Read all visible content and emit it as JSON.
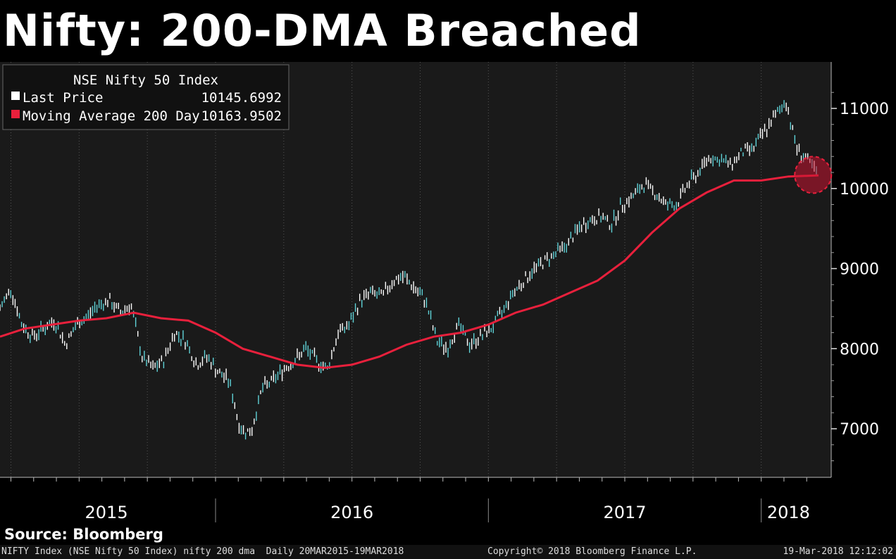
{
  "title": "Nifty: 200-DMA Breached",
  "source": "Source: Bloomberg",
  "footer": {
    "left": "NIFTY Index (NSE Nifty 50 Index) nifty 200 dma  Daily 20MAR2015-19MAR2018",
    "center": "Copyright© 2018 Bloomberg Finance L.P.",
    "right": "19-Mar-2018 12:12:02"
  },
  "colors": {
    "background": "#000000",
    "plot_background": "#1a1a1a",
    "price_bar": "#ffffff",
    "price_accent": "#5fd3d8",
    "moving_average": "#e8203c"
  },
  "chart_data": {
    "type": "line",
    "title": "NSE Nifty 50 Index",
    "x_range": [
      "2015-03-20",
      "2018-03-19"
    ],
    "ylim": [
      6500,
      11500
    ],
    "y_ticks": [
      7000,
      8000,
      9000,
      10000,
      11000
    ],
    "year_labels": [
      "2015",
      "2016",
      "2017",
      "2018"
    ],
    "legend": [
      {
        "label": "Last Price",
        "value": "10145.6992",
        "color": "#ffffff"
      },
      {
        "label": "Moving Average 200 Day",
        "value": "10163.9502",
        "color": "#e8203c"
      }
    ],
    "legend_position": "top-left",
    "annotation": "red dashed circle marking the 200-DMA breach near the last price",
    "series": [
      {
        "name": "Last Price",
        "x": [
          2015.21,
          2015.25,
          2015.29,
          2015.33,
          2015.37,
          2015.41,
          2015.45,
          2015.49,
          2015.53,
          2015.57,
          2015.61,
          2015.65,
          2015.69,
          2015.73,
          2015.77,
          2015.81,
          2015.85,
          2015.89,
          2015.93,
          2015.97,
          2016.01,
          2016.05,
          2016.09,
          2016.13,
          2016.17,
          2016.21,
          2016.25,
          2016.29,
          2016.33,
          2016.37,
          2016.41,
          2016.45,
          2016.49,
          2016.53,
          2016.57,
          2016.61,
          2016.65,
          2016.69,
          2016.73,
          2016.77,
          2016.81,
          2016.85,
          2016.89,
          2016.93,
          2016.97,
          2017.01,
          2017.05,
          2017.09,
          2017.13,
          2017.17,
          2017.21,
          2017.25,
          2017.29,
          2017.33,
          2017.37,
          2017.41,
          2017.45,
          2017.49,
          2017.53,
          2017.57,
          2017.61,
          2017.65,
          2017.69,
          2017.73,
          2017.77,
          2017.81,
          2017.85,
          2017.89,
          2017.93,
          2017.97,
          2018.01,
          2018.05,
          2018.09,
          2018.13,
          2018.17,
          2018.21
        ],
        "values": [
          8500,
          8750,
          8300,
          8150,
          8250,
          8350,
          8050,
          8300,
          8400,
          8550,
          8600,
          8450,
          8550,
          7900,
          7750,
          7850,
          8200,
          8100,
          7800,
          7900,
          7700,
          7600,
          7000,
          6950,
          7500,
          7600,
          7750,
          7850,
          8000,
          7850,
          7750,
          8200,
          8300,
          8600,
          8700,
          8650,
          8850,
          8900,
          8750,
          8600,
          8100,
          8000,
          8300,
          8050,
          8150,
          8250,
          8450,
          8700,
          8850,
          9000,
          9100,
          9200,
          9300,
          9500,
          9600,
          9650,
          9550,
          9800,
          9900,
          10050,
          9950,
          9800,
          9800,
          10050,
          10200,
          10400,
          10350,
          10300,
          10450,
          10500,
          10700,
          10900,
          11100,
          10500,
          10350,
          10150
        ]
      },
      {
        "name": "Moving Average 200 Day",
        "x": [
          2015.21,
          2015.3,
          2015.4,
          2015.5,
          2015.6,
          2015.7,
          2015.8,
          2015.9,
          2016.0,
          2016.1,
          2016.2,
          2016.3,
          2016.4,
          2016.5,
          2016.6,
          2016.7,
          2016.8,
          2016.9,
          2017.0,
          2017.1,
          2017.2,
          2017.3,
          2017.4,
          2017.5,
          2017.6,
          2017.7,
          2017.8,
          2017.9,
          2018.0,
          2018.1,
          2018.21
        ],
        "values": [
          8150,
          8250,
          8300,
          8350,
          8380,
          8450,
          8380,
          8350,
          8200,
          8000,
          7900,
          7800,
          7760,
          7800,
          7900,
          8050,
          8150,
          8200,
          8300,
          8450,
          8550,
          8700,
          8850,
          9100,
          9450,
          9750,
          9950,
          10100,
          10100,
          10150,
          10164
        ]
      }
    ]
  }
}
